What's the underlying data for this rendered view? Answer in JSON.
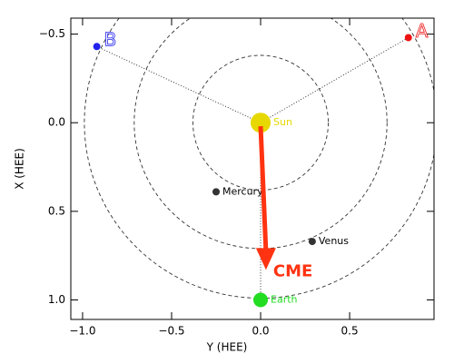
{
  "chart_data": {
    "type": "scatter",
    "xlabel": "Y (HEE)",
    "ylabel": "X (HEE)",
    "xlim": [
      -1.066,
      0.974
    ],
    "ylim": [
      -0.59,
      1.11
    ],
    "y_inverted": true,
    "xticks": [
      {
        "value": -1,
        "label": "−1.0"
      },
      {
        "value": -0.5,
        "label": "−0.5"
      },
      {
        "value": 0,
        "label": "0.0"
      },
      {
        "value": 0.5,
        "label": "0.5"
      }
    ],
    "yticks": [
      {
        "value": -0.5,
        "label": "−0.5"
      },
      {
        "value": 0,
        "label": "0.0"
      },
      {
        "value": 0.5,
        "label": "0.5"
      },
      {
        "value": 1,
        "label": "1.0"
      }
    ],
    "orbits": [
      0.38,
      0.71,
      0.99
    ],
    "points": [
      {
        "label": "Sun",
        "x": 0,
        "y": 0,
        "color": "#e6d800"
      },
      {
        "label": "Mercury",
        "x": -0.25,
        "y": 0.39,
        "color": "#333333"
      },
      {
        "label": "Venus",
        "x": 0.29,
        "y": 0.67,
        "color": "#333333"
      },
      {
        "label": "Earth",
        "x": 0,
        "y": 1.0,
        "color": "#22dd22"
      },
      {
        "label": "A",
        "x": 0.83,
        "y": -0.48,
        "color": "#ee1111"
      },
      {
        "label": "B",
        "x": -0.92,
        "y": -0.43,
        "color": "#2222ee"
      }
    ],
    "cme": {
      "label": "CME",
      "x": [
        0,
        0.03
      ],
      "y": [
        0.02,
        0.83
      ],
      "color": "#ff3311"
    }
  }
}
